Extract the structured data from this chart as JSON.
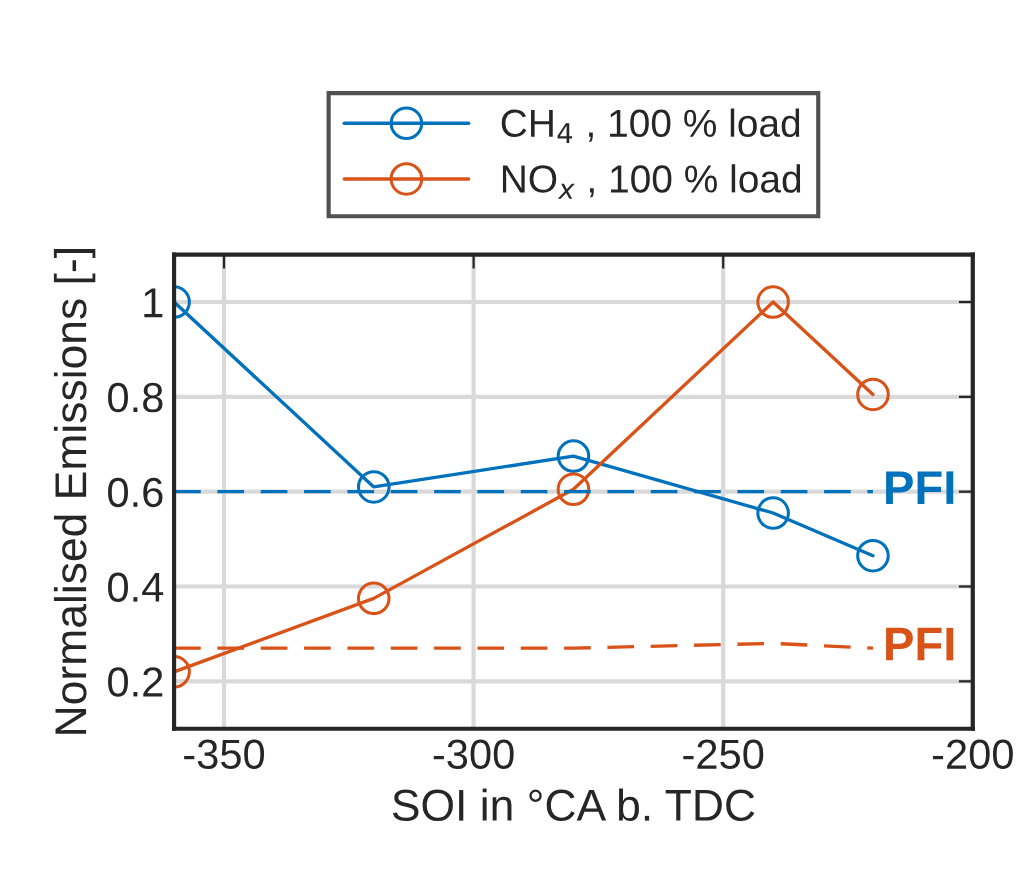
{
  "chart_data": {
    "type": "line",
    "xlabel": "SOI in °CA b. TDC",
    "ylabel": "Normalised Emissions [-]",
    "xlim": [
      -360,
      -200
    ],
    "xticks": [
      -350,
      -300,
      -250,
      -200
    ],
    "ylim": [
      0.1,
      1.1
    ],
    "yticks": [
      0.2,
      0.4,
      0.6,
      0.8,
      1
    ],
    "grid": true,
    "legend": "top",
    "marker": "circle",
    "line_style": "solid",
    "series": [
      {
        "name": "CH$_{4}$ , 100 % load",
        "color": "#0072bd",
        "x": [
          -360,
          -320,
          -280,
          -240,
          -220
        ],
        "values": [
          1.0,
          0.61,
          0.675,
          0.555,
          0.465
        ]
      },
      {
        "name": "NO$_{x}$ , 100 % load",
        "color": "#d95319",
        "x": [
          -360,
          -320,
          -280,
          -240,
          -220
        ],
        "values": [
          0.22,
          0.375,
          0.605,
          1.0,
          0.805
        ]
      },
      {
        "name": "PFI",
        "color": "#0072bd",
        "marker": "none",
        "line_style": "dashed",
        "x": [
          -360,
          -220
        ],
        "values": [
          0.6,
          0.6
        ]
      },
      {
        "name": "PFI",
        "color": "#d95319",
        "marker": "none",
        "line_style": "dashed",
        "x": [
          -360,
          -280,
          -240,
          -220
        ],
        "values": [
          0.27,
          0.27,
          0.28,
          0.27
        ]
      }
    ]
  }
}
